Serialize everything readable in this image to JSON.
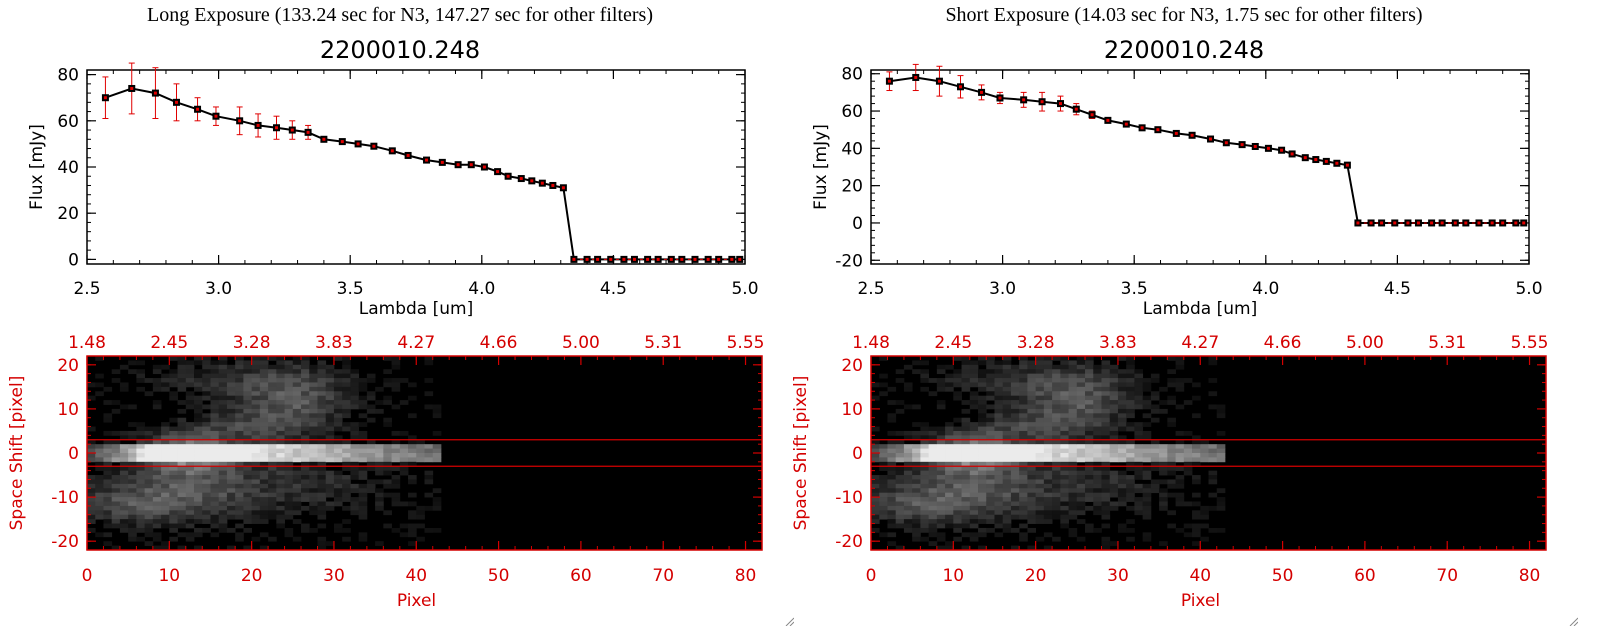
{
  "panels": [
    {
      "heading": "Long Exposure (133.24 sec for N3, 147.27 sec for other filters)",
      "spectrum": {
        "type": "line",
        "title": "2200010.248",
        "xlabel": "Lambda [um]",
        "ylabel": "Flux [mJy]",
        "xlim": [
          2.5,
          5.0
        ],
        "ylim": [
          -2,
          82
        ],
        "xticks": [
          "2.5",
          "3.0",
          "3.5",
          "4.0",
          "4.5",
          "5.0"
        ],
        "yticks": [
          "0",
          "20",
          "40",
          "60",
          "80"
        ],
        "x": [
          2.57,
          2.67,
          2.76,
          2.84,
          2.92,
          2.99,
          3.08,
          3.15,
          3.22,
          3.28,
          3.34,
          3.4,
          3.47,
          3.53,
          3.59,
          3.66,
          3.72,
          3.79,
          3.85,
          3.91,
          3.96,
          4.01,
          4.06,
          4.1,
          4.15,
          4.19,
          4.23,
          4.27,
          4.31,
          4.35,
          4.4,
          4.44,
          4.49,
          4.54,
          4.58,
          4.63,
          4.67,
          4.72,
          4.76,
          4.81,
          4.86,
          4.9,
          4.95,
          4.98
        ],
        "y": [
          70,
          74,
          72,
          68,
          65,
          62,
          60,
          58,
          57,
          56,
          55,
          52,
          51,
          50,
          49,
          47,
          45,
          43,
          42,
          41,
          41,
          40,
          38,
          36,
          35,
          34,
          33,
          32,
          31,
          0,
          0,
          0,
          0,
          0,
          0,
          0,
          0,
          0,
          0,
          0,
          0,
          0,
          0,
          0
        ],
        "err": [
          9,
          11,
          11,
          8,
          5,
          4,
          6,
          5,
          5,
          4,
          3,
          1,
          1,
          1,
          1,
          1,
          1,
          1,
          1,
          1,
          1,
          1,
          1,
          1,
          1,
          1,
          1,
          1,
          1,
          0,
          0,
          0,
          0,
          0,
          0,
          0,
          0,
          0,
          0,
          0,
          0,
          0,
          0,
          0
        ],
        "line_color": "#000000",
        "marker_color": "#000000",
        "error_color": "#e00000"
      },
      "image": {
        "type": "heatmap",
        "xlabel": "Pixel",
        "ylabel": "Space Shift [pixel]",
        "xlim": [
          0,
          82
        ],
        "ylim": [
          -22,
          22
        ],
        "xticks": [
          "0",
          "10",
          "20",
          "30",
          "40",
          "50",
          "60",
          "70",
          "80"
        ],
        "yticks": [
          "-20",
          "-10",
          "0",
          "10",
          "20"
        ],
        "top_ticks": [
          "1.48",
          "2.45",
          "3.28",
          "3.83",
          "4.27",
          "4.66",
          "5.00",
          "5.31",
          "5.55"
        ],
        "hlines": [
          3,
          -3
        ],
        "axis_color": "#d40000"
      }
    },
    {
      "heading": "Short Exposure (14.03 sec for N3, 1.75 sec for other filters)",
      "spectrum": {
        "type": "line",
        "title": "2200010.248",
        "xlabel": "Lambda [um]",
        "ylabel": "Flux [mJy]",
        "xlim": [
          2.5,
          5.0
        ],
        "ylim": [
          -22,
          82
        ],
        "xticks": [
          "2.5",
          "3.0",
          "3.5",
          "4.0",
          "4.5",
          "5.0"
        ],
        "yticks": [
          "-20",
          "0",
          "20",
          "40",
          "60",
          "80"
        ],
        "x": [
          2.57,
          2.67,
          2.76,
          2.84,
          2.92,
          2.99,
          3.08,
          3.15,
          3.22,
          3.28,
          3.34,
          3.4,
          3.47,
          3.53,
          3.59,
          3.66,
          3.72,
          3.79,
          3.85,
          3.91,
          3.96,
          4.01,
          4.06,
          4.1,
          4.15,
          4.19,
          4.23,
          4.27,
          4.31,
          4.35,
          4.4,
          4.44,
          4.49,
          4.54,
          4.58,
          4.63,
          4.67,
          4.72,
          4.76,
          4.81,
          4.86,
          4.9,
          4.95,
          4.98
        ],
        "y": [
          76,
          78,
          76,
          73,
          70,
          67,
          66,
          65,
          64,
          61,
          58,
          55,
          53,
          51,
          50,
          48,
          47,
          45,
          43,
          42,
          41,
          40,
          39,
          37,
          35,
          34,
          33,
          32,
          31,
          0,
          0,
          0,
          0,
          0,
          0,
          0,
          0,
          0,
          0,
          0,
          0,
          0,
          0,
          0
        ],
        "err": [
          5,
          7,
          8,
          6,
          4,
          3,
          4,
          5,
          4,
          3,
          2,
          1,
          1,
          1,
          1,
          1,
          1,
          1,
          1,
          1,
          1,
          1,
          1,
          1,
          1,
          1,
          1,
          1,
          1,
          1,
          1,
          1,
          1,
          1,
          1,
          1,
          1,
          1,
          1,
          1,
          1,
          1,
          1,
          1
        ],
        "line_color": "#000000",
        "marker_color": "#000000",
        "error_color": "#e00000"
      },
      "image": {
        "type": "heatmap",
        "xlabel": "Pixel",
        "ylabel": "Space Shift [pixel]",
        "xlim": [
          0,
          82
        ],
        "ylim": [
          -22,
          22
        ],
        "xticks": [
          "0",
          "10",
          "20",
          "30",
          "40",
          "50",
          "60",
          "70",
          "80"
        ],
        "yticks": [
          "-20",
          "-10",
          "0",
          "10",
          "20"
        ],
        "top_ticks": [
          "1.48",
          "2.45",
          "3.28",
          "3.83",
          "4.27",
          "4.66",
          "5.00",
          "5.31",
          "5.55"
        ],
        "hlines": [
          3,
          -3
        ],
        "axis_color": "#d40000"
      }
    }
  ],
  "chart_data": [
    {
      "type": "line",
      "title": "2200010.248",
      "xlabel": "Lambda [um]",
      "ylabel": "Flux [mJy]",
      "xlim": [
        2.5,
        5.0
      ],
      "ylim": [
        -2,
        82
      ],
      "x": [
        2.57,
        2.67,
        2.76,
        2.84,
        2.92,
        2.99,
        3.08,
        3.15,
        3.22,
        3.28,
        3.34,
        3.4,
        3.47,
        3.53,
        3.59,
        3.66,
        3.72,
        3.79,
        3.85,
        3.91,
        3.96,
        4.01,
        4.06,
        4.1,
        4.15,
        4.19,
        4.23,
        4.27,
        4.31,
        4.35,
        4.4,
        4.44,
        4.49,
        4.54,
        4.58,
        4.63,
        4.67,
        4.72,
        4.76,
        4.81,
        4.86,
        4.9,
        4.95,
        4.98
      ],
      "y": [
        70,
        74,
        72,
        68,
        65,
        62,
        60,
        58,
        57,
        56,
        55,
        52,
        51,
        50,
        49,
        47,
        45,
        43,
        42,
        41,
        41,
        40,
        38,
        36,
        35,
        34,
        33,
        32,
        31,
        0,
        0,
        0,
        0,
        0,
        0,
        0,
        0,
        0,
        0,
        0,
        0,
        0,
        0,
        0
      ]
    },
    {
      "type": "heatmap",
      "xlabel": "Pixel",
      "ylabel": "Space Shift [pixel]",
      "xlim": [
        0,
        82
      ],
      "ylim": [
        -22,
        22
      ]
    },
    {
      "type": "line",
      "title": "2200010.248",
      "xlabel": "Lambda [um]",
      "ylabel": "Flux [mJy]",
      "xlim": [
        2.5,
        5.0
      ],
      "ylim": [
        -22,
        82
      ],
      "x": [
        2.57,
        2.67,
        2.76,
        2.84,
        2.92,
        2.99,
        3.08,
        3.15,
        3.22,
        3.28,
        3.34,
        3.4,
        3.47,
        3.53,
        3.59,
        3.66,
        3.72,
        3.79,
        3.85,
        3.91,
        3.96,
        4.01,
        4.06,
        4.1,
        4.15,
        4.19,
        4.23,
        4.27,
        4.31,
        4.35,
        4.4,
        4.44,
        4.49,
        4.54,
        4.58,
        4.63,
        4.67,
        4.72,
        4.76,
        4.81,
        4.86,
        4.9,
        4.95,
        4.98
      ],
      "y": [
        76,
        78,
        76,
        73,
        70,
        67,
        66,
        65,
        64,
        61,
        58,
        55,
        53,
        51,
        50,
        48,
        47,
        45,
        43,
        42,
        41,
        40,
        39,
        37,
        35,
        34,
        33,
        32,
        31,
        0,
        0,
        0,
        0,
        0,
        0,
        0,
        0,
        0,
        0,
        0,
        0,
        0,
        0,
        0
      ]
    },
    {
      "type": "heatmap",
      "xlabel": "Pixel",
      "ylabel": "Space Shift [pixel]",
      "xlim": [
        0,
        82
      ],
      "ylim": [
        -22,
        22
      ]
    }
  ]
}
